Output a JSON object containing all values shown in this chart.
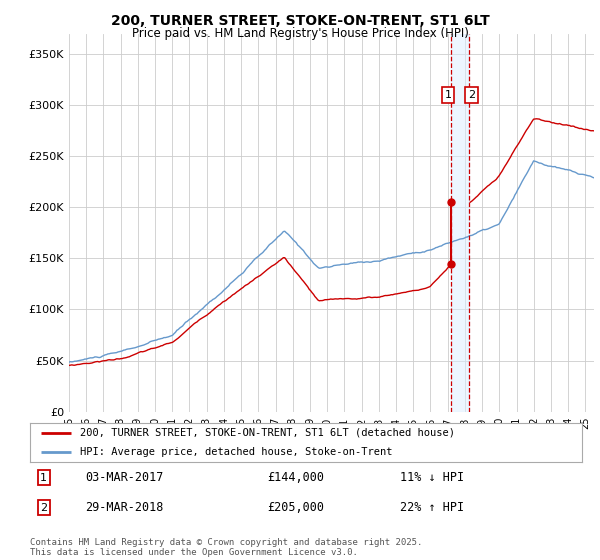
{
  "title": "200, TURNER STREET, STOKE-ON-TRENT, ST1 6LT",
  "subtitle": "Price paid vs. HM Land Registry's House Price Index (HPI)",
  "legend_line1": "200, TURNER STREET, STOKE-ON-TRENT, ST1 6LT (detached house)",
  "legend_line2": "HPI: Average price, detached house, Stoke-on-Trent",
  "transaction1_date": "03-MAR-2017",
  "transaction1_price": "£144,000",
  "transaction1_hpi": "11% ↓ HPI",
  "transaction1_year": 2017.17,
  "transaction1_value": 144000,
  "transaction2_date": "29-MAR-2018",
  "transaction2_price": "£205,000",
  "transaction2_hpi": "22% ↑ HPI",
  "transaction2_year": 2018.25,
  "transaction2_value": 205000,
  "footer": "Contains HM Land Registry data © Crown copyright and database right 2025.\nThis data is licensed under the Open Government Licence v3.0.",
  "ylim": [
    0,
    370000
  ],
  "xlim_start": 1995,
  "xlim_end": 2025.5,
  "red_color": "#cc0000",
  "blue_color": "#6699cc",
  "blue_fill": "#ddeeff",
  "background_color": "#ffffff",
  "grid_color": "#cccccc"
}
